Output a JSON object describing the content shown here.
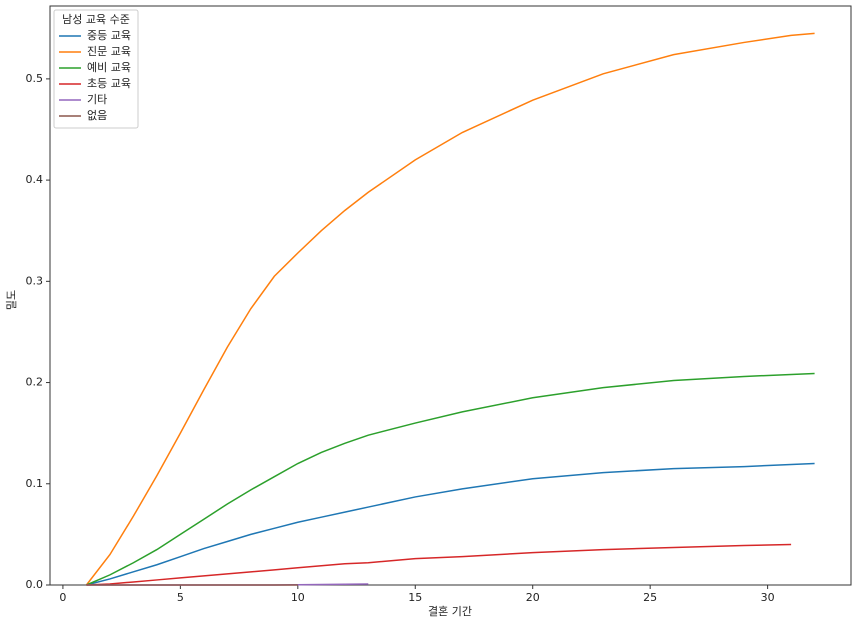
{
  "chart_data": {
    "type": "line",
    "x_label": "결혼 기간",
    "y_label": "밀도",
    "legend_title": "남성 교육 수준",
    "legend": "upper left",
    "x": [
      1,
      2,
      3,
      4,
      5,
      6,
      7,
      8,
      9,
      10,
      11,
      12,
      13,
      15,
      17,
      20,
      23,
      26,
      29,
      31,
      32
    ],
    "series": [
      {
        "name": "중등 교육",
        "color": "#1f77b4",
        "values": [
          0,
          0.006,
          0.013,
          0.02,
          0.028,
          0.036,
          0.043,
          0.05,
          0.056,
          0.062,
          0.067,
          0.072,
          0.077,
          0.087,
          0.095,
          0.105,
          0.111,
          0.115,
          0.117,
          0.119,
          0.12
        ]
      },
      {
        "name": "진문 교육",
        "color": "#ff7f0e",
        "values": [
          0,
          0.03,
          0.068,
          0.108,
          0.15,
          0.193,
          0.235,
          0.273,
          0.305,
          0.328,
          0.35,
          0.37,
          0.388,
          0.42,
          0.447,
          0.479,
          0.505,
          0.524,
          0.536,
          0.543,
          0.545
        ]
      },
      {
        "name": "예비 교육",
        "color": "#2ca02c",
        "values": [
          0,
          0.01,
          0.022,
          0.035,
          0.05,
          0.065,
          0.08,
          0.094,
          0.107,
          0.12,
          0.131,
          0.14,
          0.148,
          0.16,
          0.171,
          0.185,
          0.195,
          0.202,
          0.206,
          0.208,
          0.209
        ]
      },
      {
        "name": "초등 교육",
        "color": "#d62728",
        "values": [
          0,
          0.001,
          0.003,
          0.005,
          0.007,
          0.009,
          0.011,
          0.013,
          0.015,
          0.017,
          0.019,
          0.021,
          0.022,
          0.026,
          0.028,
          0.032,
          0.035,
          0.037,
          0.039,
          0.04,
          null
        ]
      },
      {
        "name": "기타",
        "color": "#9467bd",
        "values": [
          0,
          0,
          0,
          0,
          0,
          0,
          0,
          0,
          0,
          0.0003,
          0.0005,
          0.0008,
          0.001,
          null,
          null,
          null,
          null,
          null,
          null,
          null,
          null
        ]
      },
      {
        "name": "없음",
        "color": "#8c564b",
        "values": [
          0,
          0,
          0,
          0,
          0,
          0,
          0,
          0,
          0,
          0,
          null,
          null,
          null,
          null,
          null,
          null,
          null,
          null,
          null,
          null,
          null
        ]
      }
    ],
    "xlim": [
      -0.55,
      33.55
    ],
    "xticks": [
      0,
      5,
      10,
      15,
      20,
      25,
      30
    ],
    "ylim": [
      0,
      0.572
    ],
    "yticks": [
      {
        "value": 0,
        "label": "0.0"
      },
      0.1,
      0.2,
      0.3,
      0.4,
      0.5
    ]
  }
}
